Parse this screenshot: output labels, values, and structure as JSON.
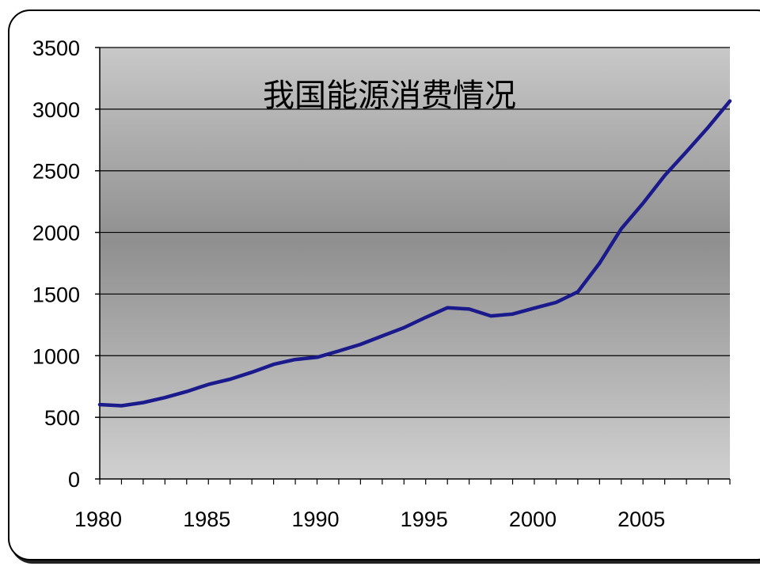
{
  "chart_data": {
    "type": "line",
    "title": "我国能源消费情况",
    "xlabel": "",
    "ylabel": "",
    "xlim": [
      1980,
      2009
    ],
    "ylim": [
      0,
      3500
    ],
    "y_ticks": [
      0,
      500,
      1000,
      1500,
      2000,
      2500,
      3000,
      3500
    ],
    "x_tick_labels": [
      1980,
      1985,
      1990,
      1995,
      2000,
      2005
    ],
    "grid": true,
    "legend": "none",
    "colors": {
      "line": "#1a1a8c",
      "plot_bg_top": "#c8c8c8",
      "plot_bg_mid": "#8f8f8f",
      "plot_bg_bottom": "#d0d0d0"
    },
    "series": [
      {
        "x": [
          1980,
          1981,
          1982,
          1983,
          1984,
          1985,
          1986,
          1987,
          1988,
          1989,
          1990,
          1991,
          1992,
          1993,
          1994,
          1995,
          1996,
          1997,
          1998,
          1999,
          2000,
          2001,
          2002,
          2003,
          2004,
          2005,
          2006,
          2007,
          2008,
          2009
        ],
        "values": [
          603,
          594,
          620,
          660,
          709,
          767,
          809,
          866,
          930,
          969,
          987,
          1038,
          1092,
          1160,
          1227,
          1311,
          1389,
          1378,
          1322,
          1338,
          1386,
          1432,
          1518,
          1750,
          2030,
          2236,
          2462,
          2655,
          2853,
          3066
        ]
      }
    ]
  }
}
